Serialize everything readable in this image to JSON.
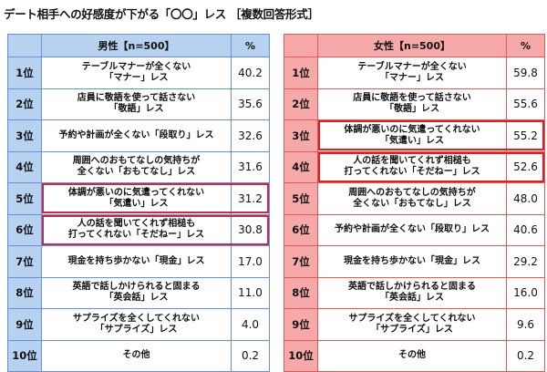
{
  "title": "デート相手への好感度が下がる「〇〇」レス ［複数回答形式］",
  "male": {
    "header": "男性【n=500】",
    "pct_header": "%",
    "highlight_colors": "#c42a4a",
    "rows": [
      {
        "rank": "1位",
        "item1": "テーブルマナーが全くない",
        "item2": "「マナー」レス",
        "pct": "40.2"
      },
      {
        "rank": "2位",
        "item1": "店員に敬語を使って話さない",
        "item2": "「敬語」レス",
        "pct": "35.6"
      },
      {
        "rank": "3位",
        "item1": "予約や計画が全くない「段取り」レス",
        "item2": "",
        "pct": "32.6"
      },
      {
        "rank": "4位",
        "item1": "周囲へのおもてなしの気持ちが",
        "item2": "全くない「おもてなし」レス",
        "pct": "31.6"
      },
      {
        "rank": "5位",
        "item1": "体調が悪いのに気遣ってくれない",
        "item2": "「気遣い」レス",
        "pct": "31.2",
        "highlight": true
      },
      {
        "rank": "6位",
        "item1": "人の話を聞いてくれず相槌も",
        "item2": "打ってくれない「そだねー」レス",
        "pct": "30.8",
        "highlight": true
      },
      {
        "rank": "7位",
        "item1": "現金を持ち歩かない「現金」レス",
        "item2": "",
        "pct": "17.0"
      },
      {
        "rank": "8位",
        "item1": "英語で話しかけられると固まる",
        "item2": "「英会話」レス",
        "pct": "11.0"
      },
      {
        "rank": "9位",
        "item1": "サプライズを全くしてくれない",
        "item2": "「サプライズ」レス",
        "pct": "4.0"
      },
      {
        "rank": "10位",
        "item1": "その他",
        "item2": "",
        "pct": "0.2"
      }
    ]
  },
  "female": {
    "header": "女性【n=500】",
    "pct_header": "%",
    "highlight_colors": "#e02020",
    "rows": [
      {
        "rank": "1位",
        "item1": "テーブルマナーが全くない",
        "item2": "「マナー」レス",
        "pct": "59.8"
      },
      {
        "rank": "2位",
        "item1": "店員に敬語を使って話さない",
        "item2": "「敬語」レス",
        "pct": "55.6"
      },
      {
        "rank": "3位",
        "item1": "体調が悪いのに気遣ってくれない",
        "item2": "「気遣い」レス",
        "pct": "55.2",
        "highlight": true
      },
      {
        "rank": "4位",
        "item1": "人の話を聞いてくれず相槌も",
        "item2": "打ってくれない「そだねー」レス",
        "pct": "52.6",
        "highlight": true
      },
      {
        "rank": "5位",
        "item1": "周囲へのおもてなしの気持ちが",
        "item2": "全くない「おもてなし」レス",
        "pct": "48.0"
      },
      {
        "rank": "6位",
        "item1": "予約や計画が全くない「段取り」レス",
        "item2": "",
        "pct": "40.6"
      },
      {
        "rank": "7位",
        "item1": "現金を持ち歩かない「現金」レス",
        "item2": "",
        "pct": "29.2"
      },
      {
        "rank": "8位",
        "item1": "英語で話しかけられると固まる",
        "item2": "「英会話」レス",
        "pct": "16.0"
      },
      {
        "rank": "9位",
        "item1": "サプライズを全くしてくれない",
        "item2": "「サプライズ」レス",
        "pct": "9.6"
      },
      {
        "rank": "10位",
        "item1": "その他",
        "item2": "",
        "pct": "0.2"
      }
    ]
  }
}
